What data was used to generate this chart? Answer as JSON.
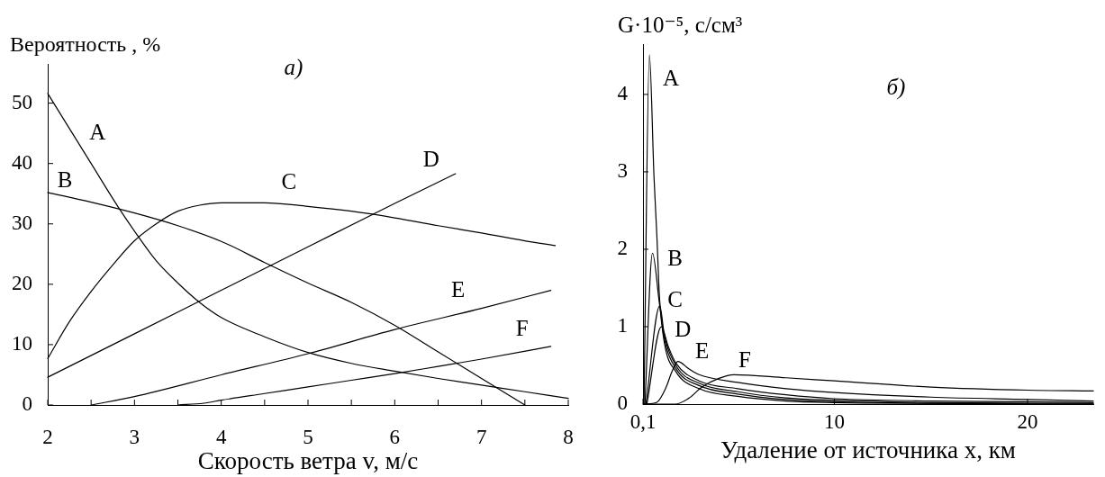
{
  "chart_data": [
    {
      "type": "line",
      "xlabel": "Скорость ветра v, м/с",
      "ylabel": "Вероятность , %",
      "annotations": [
        "а)"
      ],
      "marker": "none",
      "xlim": [
        2,
        8
      ],
      "xticks": [
        2,
        {
          "value": 2.5,
          "label": null
        },
        3,
        {
          "value": 3.5,
          "label": null
        },
        4,
        {
          "value": 4.5,
          "label": null
        },
        5,
        {
          "value": 5.5,
          "label": null
        },
        6,
        {
          "value": 6.5,
          "label": null
        },
        7,
        {
          "value": 7.5,
          "label": null
        },
        8
      ],
      "ylim": [
        0,
        56.5
      ],
      "yticks": [
        0,
        10,
        20,
        30,
        40,
        50
      ],
      "series": [
        {
          "name": "A",
          "color": "#000000",
          "x": [
            2,
            2.5,
            2.83,
            3,
            3.25,
            3.5,
            3.75,
            4,
            4.5,
            5,
            5.5,
            6,
            6.5,
            7,
            7.5,
            8
          ],
          "values": [
            51.6,
            40.0,
            32.4,
            28.8,
            23.9,
            20.2,
            17.0,
            14.5,
            11.3,
            8.7,
            6.9,
            5.6,
            4.4,
            3.3,
            2.2,
            1.1
          ]
        },
        {
          "name": "B",
          "color": "#000000",
          "x": [
            2,
            2.5,
            3,
            3.5,
            4,
            4.5,
            5,
            5.5,
            6,
            6.5,
            7,
            7.5
          ],
          "values": [
            35.2,
            33.6,
            31.8,
            29.7,
            27.1,
            23.6,
            20.2,
            17.0,
            13.2,
            8.8,
            4.4,
            0
          ]
        },
        {
          "name": "C",
          "color": "#000000",
          "x": [
            2,
            2.25,
            2.5,
            2.75,
            3,
            3.25,
            3.5,
            3.75,
            4,
            4.5,
            5,
            5.5,
            6,
            6.5,
            7,
            7.5,
            7.85
          ],
          "values": [
            7.7,
            13.8,
            18.8,
            23.2,
            27.2,
            30.0,
            32.1,
            33.1,
            33.5,
            33.5,
            32.9,
            32.1,
            31.0,
            29.7,
            28.5,
            27.2,
            26.4
          ]
        },
        {
          "name": "D",
          "color": "#000000",
          "x": [
            2,
            3,
            4,
            5,
            6,
            6.7
          ],
          "values": [
            4.6,
            11.8,
            19.0,
            26.2,
            33.4,
            38.3
          ]
        },
        {
          "name": "E",
          "color": "#000000",
          "x": [
            2.5,
            3,
            4,
            5,
            6,
            7,
            7.8
          ],
          "values": [
            0,
            1.4,
            5.0,
            8.5,
            12.5,
            16.0,
            19.0
          ]
        },
        {
          "name": "F",
          "color": "#000000",
          "x": [
            3.5,
            3.8,
            4,
            4.5,
            5,
            5.5,
            6,
            6.5,
            7,
            7.8
          ],
          "values": [
            0,
            0.3,
            0.8,
            1.9,
            3.0,
            4.1,
            5.2,
            6.4,
            7.6,
            9.7
          ]
        }
      ]
    },
    {
      "type": "line",
      "xlabel": "Удаление от источника x, км",
      "ylabel": "G·10⁻⁵, с/см³",
      "annotations": [
        "б)"
      ],
      "marker": "none",
      "xlim": [
        0.1,
        23.4
      ],
      "xticks": [
        {
          "value": 0.1,
          "label": "0,1"
        },
        10,
        20
      ],
      "ylim": [
        0,
        4.65
      ],
      "yticks": [
        0,
        1,
        2,
        3,
        4
      ],
      "series": [
        {
          "name": "A",
          "color": "#000000",
          "x": [
            0.15,
            0.43,
            0.67,
            0.82,
            0.95,
            1.2,
            1.8,
            3,
            5,
            7.5,
            10,
            15,
            23.4
          ],
          "values": [
            0,
            4.51,
            2.93,
            2.16,
            1.39,
            0.8,
            0.42,
            0.2,
            0.1,
            0.04,
            0.02,
            0.01,
            0
          ]
        },
        {
          "name": "B",
          "color": "#000000",
          "x": [
            0.2,
            0.59,
            0.95,
            1.2,
            1.8,
            3,
            5,
            7.5,
            10,
            15,
            23.4
          ],
          "values": [
            0,
            1.95,
            1.3,
            0.85,
            0.46,
            0.24,
            0.13,
            0.06,
            0.03,
            0.01,
            0
          ]
        },
        {
          "name": "C",
          "color": "#000000",
          "x": [
            0.25,
            0.97,
            1.2,
            1.8,
            3,
            5,
            7.5,
            10,
            15,
            23.4
          ],
          "values": [
            0,
            1.27,
            0.9,
            0.5,
            0.27,
            0.16,
            0.08,
            0.05,
            0.02,
            0.01
          ]
        },
        {
          "name": "D",
          "color": "#000000",
          "x": [
            0.3,
            1.05,
            1.4,
            1.8,
            3,
            5,
            7.5,
            10,
            15,
            20,
            23.4
          ],
          "values": [
            0,
            1.0,
            0.75,
            0.53,
            0.3,
            0.2,
            0.12,
            0.07,
            0.04,
            0.03,
            0.02
          ]
        },
        {
          "name": "E",
          "color": "#000000",
          "x": [
            0.2,
            0.8,
            1.3,
            1.6,
            1.9,
            2.5,
            3,
            5,
            7.5,
            10,
            15,
            20,
            23.4
          ],
          "values": [
            0,
            0.02,
            0.22,
            0.42,
            0.55,
            0.45,
            0.38,
            0.28,
            0.2,
            0.15,
            0.09,
            0.06,
            0.04
          ]
        },
        {
          "name": "F",
          "color": "#000000",
          "x": [
            0.1,
            1.77,
            2.5,
            3.15,
            4,
            4.8,
            7.5,
            10,
            15,
            20,
            23.4
          ],
          "values": [
            0,
            0,
            0.08,
            0.22,
            0.33,
            0.38,
            0.34,
            0.3,
            0.22,
            0.18,
            0.17
          ]
        }
      ]
    }
  ]
}
